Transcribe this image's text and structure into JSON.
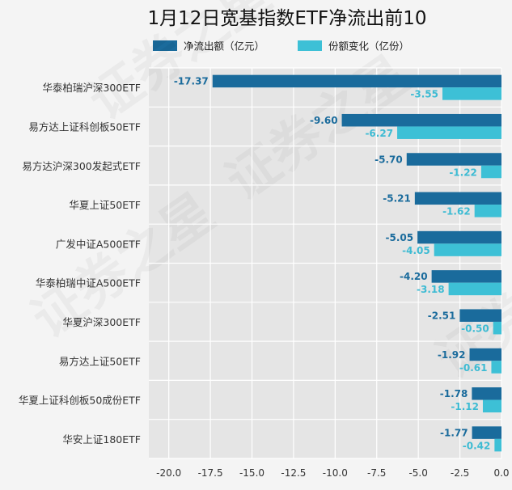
{
  "chart_data": {
    "type": "bar",
    "orientation": "horizontal",
    "title": "1月12日宽基指数ETF净流出前10",
    "categories": [
      "华泰柏瑞沪深300ETF",
      "易方达上证科创板50ETF",
      "易方达沪深300发起式ETF",
      "华夏上证50ETF",
      "广发中证A500ETF",
      "华泰柏瑞中证A500ETF",
      "华夏沪深300ETF",
      "易方达上证50ETF",
      "华夏上证科创板50成份ETF",
      "华安上证180ETF"
    ],
    "series": [
      {
        "name": "净流出额（亿元）",
        "color": "#1a6b9c",
        "label_color": "#1a6b9c",
        "values": [
          -17.37,
          -9.6,
          -5.7,
          -5.21,
          -5.05,
          -4.2,
          -2.51,
          -1.92,
          -1.78,
          -1.77
        ],
        "labels": [
          "-17.37",
          "-9.60",
          "-5.70",
          "-5.21",
          "-5.05",
          "-4.20",
          "-2.51",
          "-1.92",
          "-1.78",
          "-1.77"
        ]
      },
      {
        "name": "份额变化（亿份）",
        "color": "#3dc0d6",
        "label_color": "#3dbbd3",
        "values": [
          -3.55,
          -6.27,
          -1.22,
          -1.62,
          -4.05,
          -3.18,
          -0.5,
          -0.61,
          -1.12,
          -0.42
        ],
        "labels": [
          "-3.55",
          "-6.27",
          "-1.22",
          "-1.62",
          "-4.05",
          "-3.18",
          "-0.50",
          "-0.61",
          "-1.12",
          "-0.42"
        ]
      }
    ],
    "xlim": [
      -21.2,
      0
    ],
    "xticks": [
      -20.0,
      -17.5,
      -15.0,
      -12.5,
      -10.0,
      -7.5,
      -5.0,
      -2.5,
      0.0
    ],
    "xtick_labels": [
      "-20.0",
      "-17.5",
      "-15.0",
      "-12.5",
      "-10.0",
      "-7.5",
      "-5.0",
      "-2.5",
      "0.0"
    ],
    "grid": true,
    "legend_position": "top",
    "plot_background": "#e5e5e5",
    "watermark": "证券之星"
  }
}
